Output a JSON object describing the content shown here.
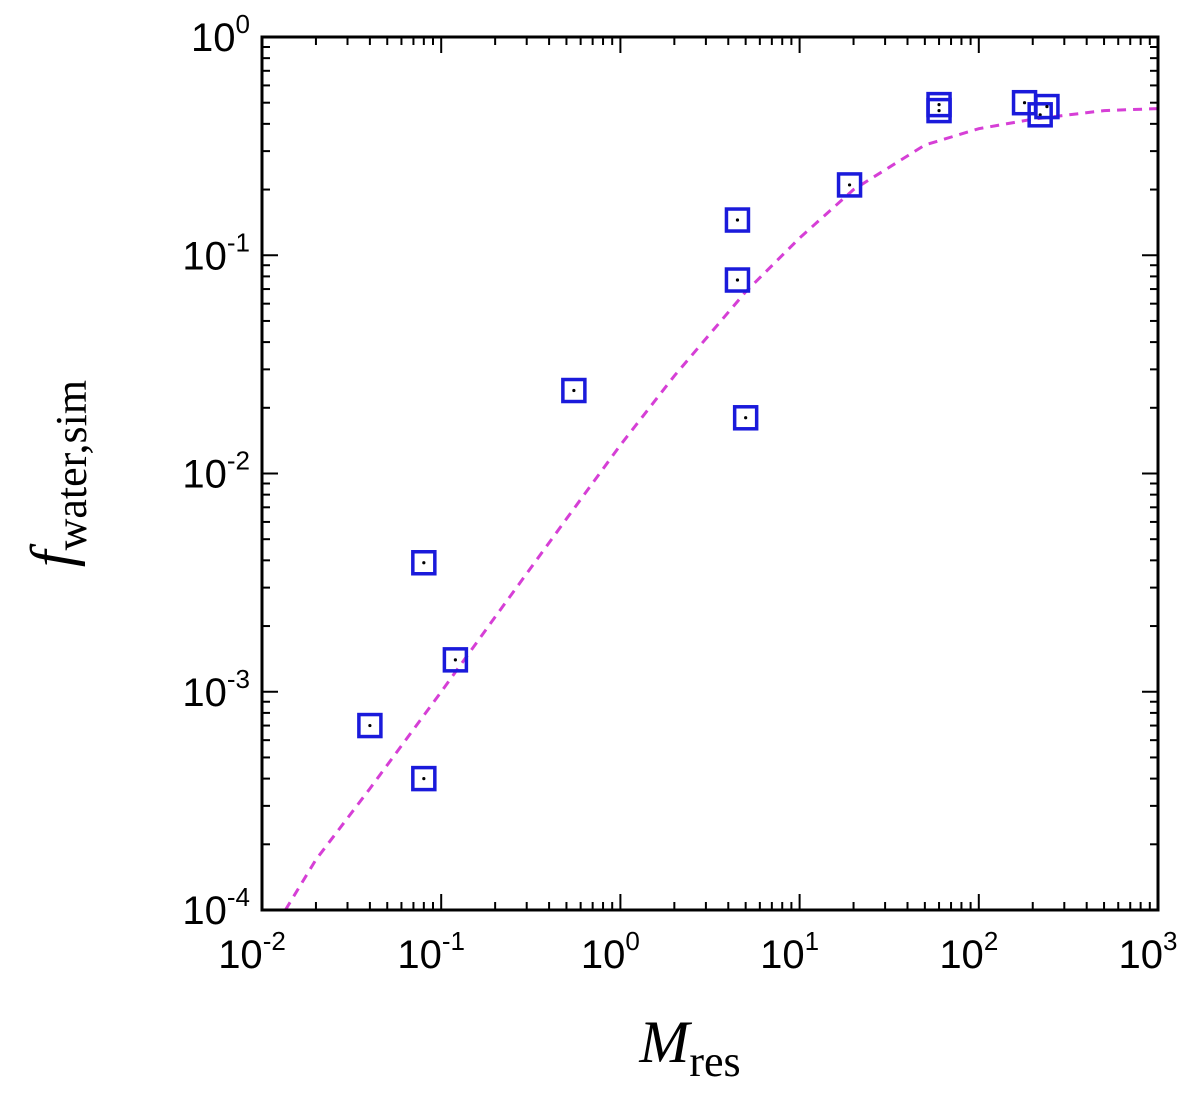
{
  "chart_data": {
    "type": "scatter",
    "x_scale": "log",
    "y_scale": "log",
    "xlim": [
      0.01,
      1000
    ],
    "ylim": [
      0.0001,
      1
    ],
    "xlabel": {
      "main": "M",
      "sub": "res"
    },
    "ylabel": {
      "main": "f",
      "sub": "water,sim"
    },
    "x_ticks": [
      {
        "value": 0.01,
        "base": "10",
        "exp": "-2"
      },
      {
        "value": 0.1,
        "base": "10",
        "exp": "-1"
      },
      {
        "value": 1,
        "base": "10",
        "exp": "0"
      },
      {
        "value": 10,
        "base": "10",
        "exp": "1"
      },
      {
        "value": 100,
        "base": "10",
        "exp": "2"
      },
      {
        "value": 1000,
        "base": "10",
        "exp": "3"
      }
    ],
    "y_ticks": [
      {
        "value": 0.0001,
        "base": "10",
        "exp": "-4"
      },
      {
        "value": 0.001,
        "base": "10",
        "exp": "-3"
      },
      {
        "value": 0.01,
        "base": "10",
        "exp": "-2"
      },
      {
        "value": 0.1,
        "base": "10",
        "exp": "-1"
      },
      {
        "value": 1,
        "base": "10",
        "exp": "0"
      }
    ],
    "grid": false,
    "series": [
      {
        "marker": "open-square",
        "color": "#1a1adb",
        "points": [
          {
            "x": 0.04,
            "y": 0.0007
          },
          {
            "x": 0.08,
            "y": 0.0004
          },
          {
            "x": 0.08,
            "y": 0.0039
          },
          {
            "x": 0.12,
            "y": 0.0014
          },
          {
            "x": 0.55,
            "y": 0.024
          },
          {
            "x": 4.5,
            "y": 0.145
          },
          {
            "x": 4.5,
            "y": 0.077
          },
          {
            "x": 5.0,
            "y": 0.018
          },
          {
            "x": 19,
            "y": 0.21
          },
          {
            "x": 60,
            "y": 0.49
          },
          {
            "x": 60,
            "y": 0.46
          },
          {
            "x": 180,
            "y": 0.5
          },
          {
            "x": 220,
            "y": 0.44
          },
          {
            "x": 240,
            "y": 0.48
          }
        ]
      },
      {
        "marker": "dashed-line",
        "color": "#d63fd6",
        "points": [
          {
            "x": 0.0135,
            "y": 0.0001
          },
          {
            "x": 0.02,
            "y": 0.00017
          },
          {
            "x": 0.04,
            "y": 0.00036
          },
          {
            "x": 0.1,
            "y": 0.001
          },
          {
            "x": 0.2,
            "y": 0.0022
          },
          {
            "x": 0.5,
            "y": 0.0062
          },
          {
            "x": 1,
            "y": 0.0135
          },
          {
            "x": 2,
            "y": 0.028
          },
          {
            "x": 5,
            "y": 0.068
          },
          {
            "x": 10,
            "y": 0.12
          },
          {
            "x": 20,
            "y": 0.2
          },
          {
            "x": 50,
            "y": 0.32
          },
          {
            "x": 100,
            "y": 0.38
          },
          {
            "x": 200,
            "y": 0.42
          },
          {
            "x": 500,
            "y": 0.46
          },
          {
            "x": 1000,
            "y": 0.47
          }
        ]
      }
    ]
  }
}
